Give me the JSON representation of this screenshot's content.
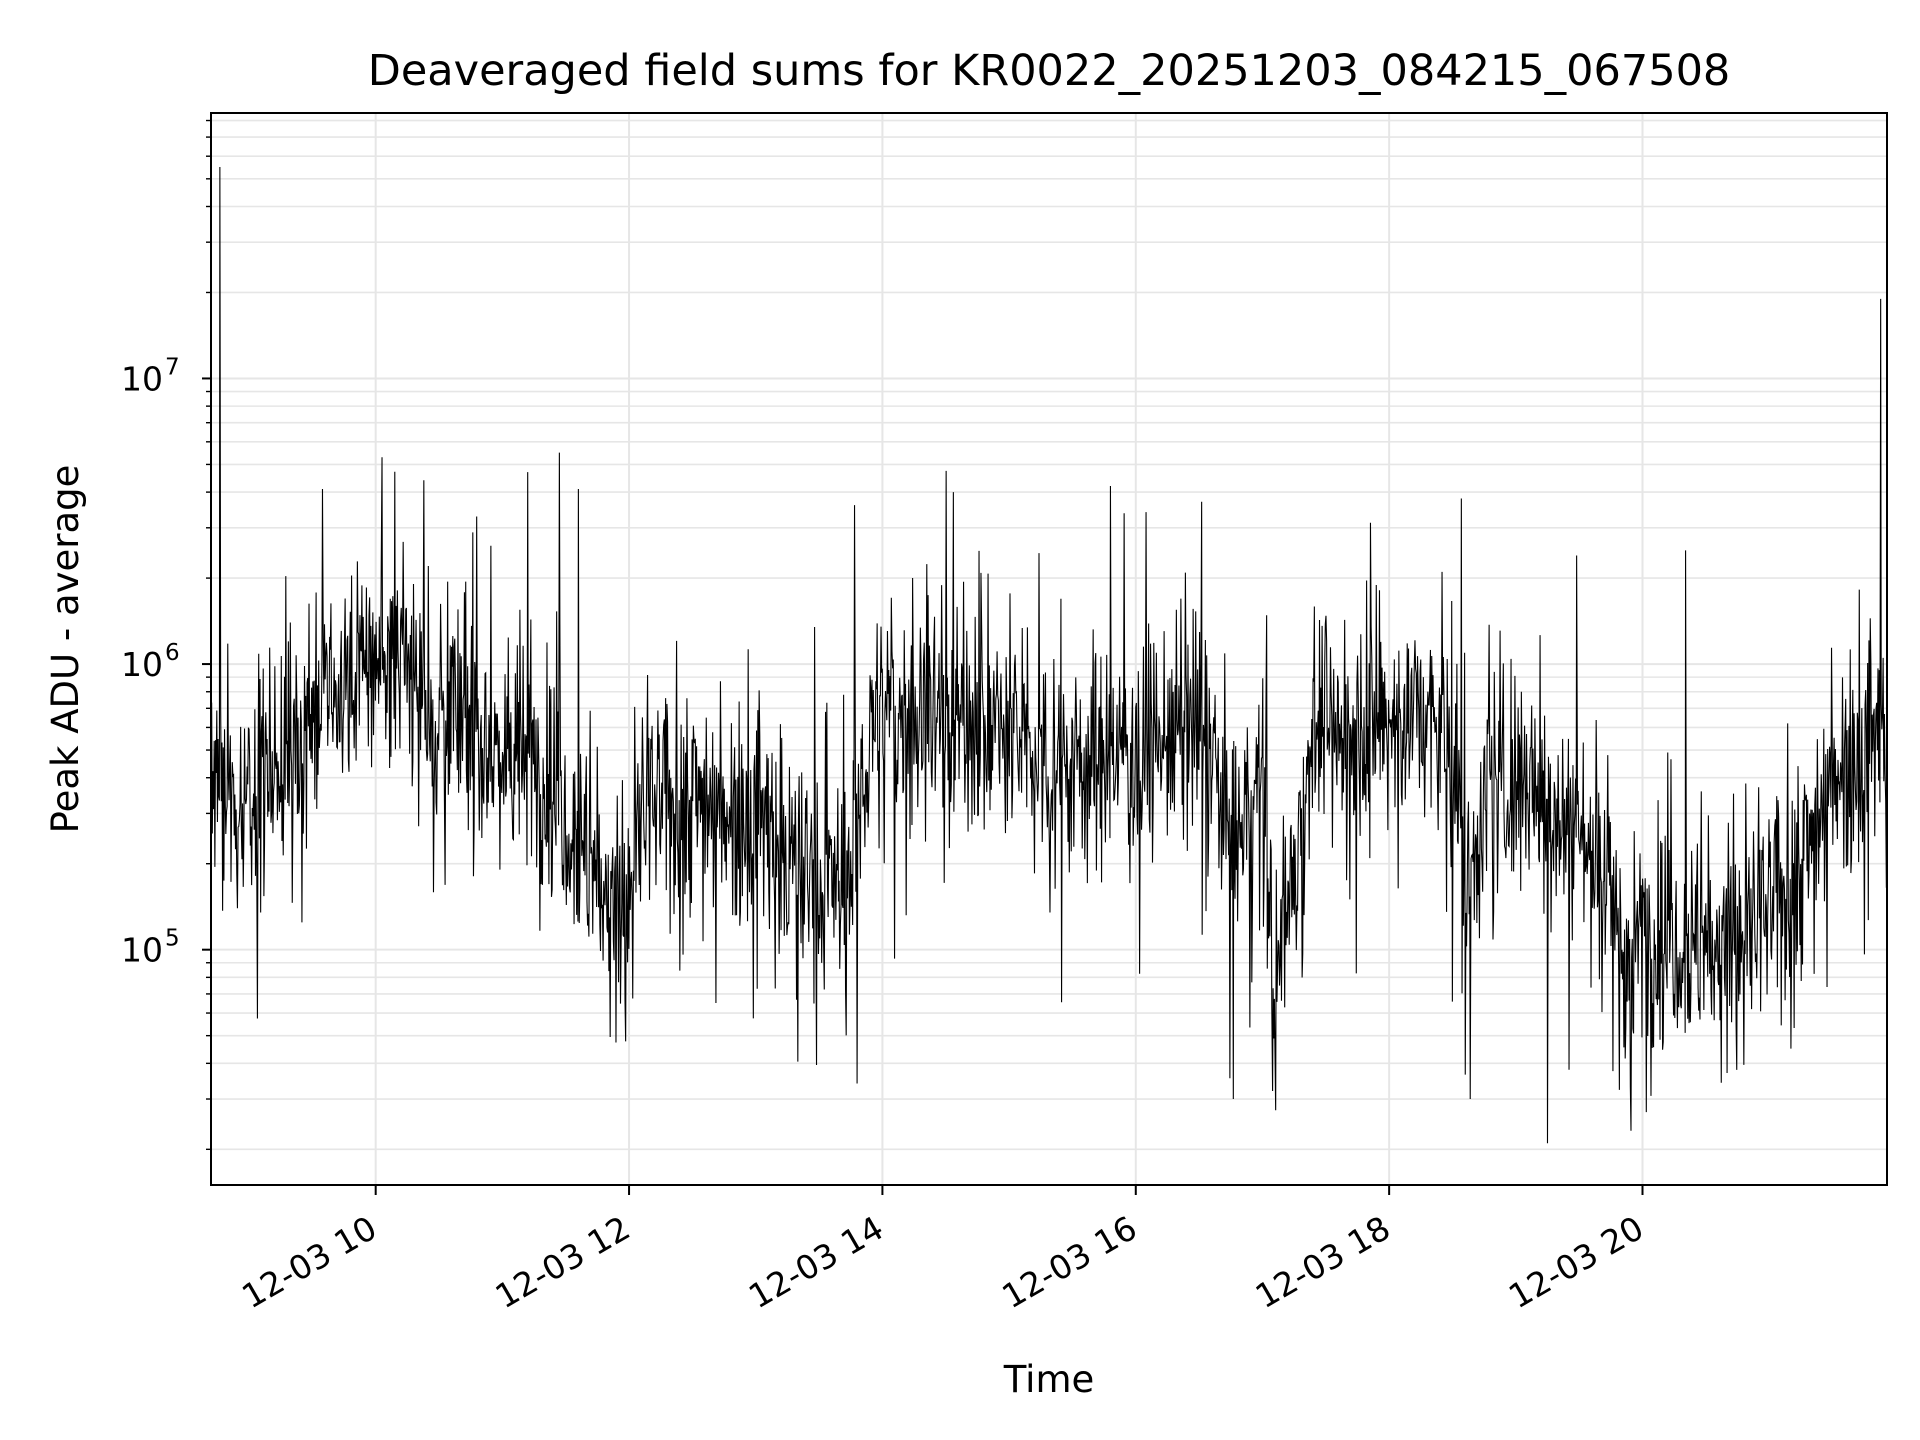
{
  "chart_data": {
    "type": "line",
    "title": "Deaveraged field sums for KR0022_20251203_084215_067508",
    "xlabel": "Time",
    "ylabel": "Peak ADU - average",
    "yscale": "log",
    "ylim": [
      15000,
      85000000
    ],
    "xlim_hours": [
      8.7,
      21.93
    ],
    "grid": true,
    "line_color": "#000000",
    "grid_color": "#e6e6e6",
    "x_ticks": [
      {
        "hour": 10,
        "label": "12-03 10"
      },
      {
        "hour": 12,
        "label": "12-03 12"
      },
      {
        "hour": 14,
        "label": "12-03 14"
      },
      {
        "hour": 16,
        "label": "12-03 16"
      },
      {
        "hour": 18,
        "label": "12-03 18"
      },
      {
        "hour": 20,
        "label": "12-03 20"
      }
    ],
    "y_ticks": [
      {
        "value": 100000,
        "base": "10",
        "exp": "5"
      },
      {
        "value": 1000000,
        "base": "10",
        "exp": "6"
      },
      {
        "value": 10000000,
        "base": "10",
        "exp": "7"
      }
    ],
    "series": [
      {
        "name": "Deaveraged field sum",
        "trend": {
          "x": [
            8.7,
            8.78,
            8.95,
            9.3,
            9.8,
            10.1,
            10.5,
            11.0,
            11.4,
            11.6,
            11.75,
            11.95,
            12.1,
            12.6,
            13.0,
            13.3,
            13.5,
            13.75,
            13.9,
            14.4,
            15.0,
            15.5,
            16.0,
            16.5,
            16.8,
            17.0,
            17.1,
            17.25,
            17.4,
            17.8,
            18.2,
            18.5,
            18.6,
            18.7,
            19.0,
            19.4,
            19.7,
            19.85,
            20.2,
            20.6,
            21.0,
            21.3,
            21.5,
            21.93
          ],
          "y": [
            400000,
            300000,
            350000,
            500000,
            900000,
            1100000,
            700000,
            500000,
            400000,
            250000,
            180000,
            120000,
            300000,
            350000,
            300000,
            200000,
            160000,
            180000,
            600000,
            700000,
            550000,
            450000,
            500000,
            600000,
            250000,
            350000,
            70000,
            200000,
            600000,
            550000,
            700000,
            500000,
            150000,
            300000,
            400000,
            300000,
            200000,
            100000,
            120000,
            100000,
            130000,
            220000,
            450000,
            550000
          ]
        },
        "spikes": [
          {
            "x": 8.77,
            "y": 55000000
          },
          {
            "x": 21.88,
            "y": 19000000
          },
          {
            "x": 10.05,
            "y": 5300000
          },
          {
            "x": 11.45,
            "y": 5500000
          },
          {
            "x": 11.2,
            "y": 4700000
          },
          {
            "x": 11.6,
            "y": 4100000
          },
          {
            "x": 13.78,
            "y": 3600000
          },
          {
            "x": 14.56,
            "y": 4000000
          },
          {
            "x": 15.8,
            "y": 4200000
          },
          {
            "x": 16.52,
            "y": 3700000
          },
          {
            "x": 18.57,
            "y": 3800000
          },
          {
            "x": 20.34,
            "y": 2500000
          },
          {
            "x": 19.48,
            "y": 2400000
          },
          {
            "x": 9.58,
            "y": 4100000
          },
          {
            "x": 10.38,
            "y": 4400000
          },
          {
            "x": 19.25,
            "y": 21000
          },
          {
            "x": 20.03,
            "y": 27000
          },
          {
            "x": 16.77,
            "y": 30000
          },
          {
            "x": 17.08,
            "y": 32000
          },
          {
            "x": 18.64,
            "y": 30000
          },
          {
            "x": 13.8,
            "y": 34000
          },
          {
            "x": 19.42,
            "y": 38000
          }
        ]
      }
    ]
  }
}
